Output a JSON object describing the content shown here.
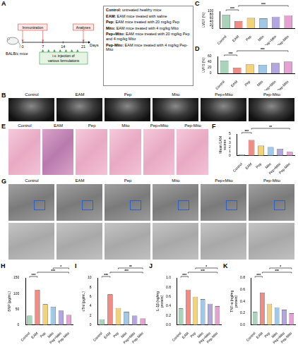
{
  "schematic": {
    "panel": "A",
    "subject": "BALB/c mice",
    "timeline": {
      "ticks": [
        0,
        7,
        14,
        21
      ],
      "unit": "Days",
      "events": [
        {
          "days": [
            0,
            7
          ],
          "label": "Immunization"
        },
        {
          "days": [
            21
          ],
          "label": "Analyses"
        }
      ],
      "treatment": {
        "label": "i.v. injection of various formulations",
        "days": [
          7,
          9,
          11,
          13,
          15,
          17,
          19
        ]
      }
    },
    "groups": [
      "Control: untreated healthy mice",
      "EAM: EAM mice treated with saline",
      "Pep: EAM mice treated with 20 mg/kg Pep",
      "Mito: EAM mice treated with 4 mg/kg Mito",
      "Pep+Mito: EAM mice treated with 20 mg/kg Pep and 4 mg/kg Mito",
      "Pep-Mito: EAM mice treated with 4 mg/kg Pep-Mito"
    ]
  },
  "image_panels": [
    {
      "panel": "B",
      "columns": [
        "Control",
        "EAM",
        "Pep",
        "Mito",
        "Pep+Mito",
        "Pep-Mito"
      ]
    },
    {
      "panel": "E",
      "columns": [
        "Control",
        "EAM",
        "Pep",
        "Mito",
        "Pep+Mito",
        "Pep-Mito"
      ]
    },
    {
      "panel": "G",
      "columns": [
        "Control",
        "EAM",
        "Pep",
        "Mito",
        "Pep+Mito",
        "Pep-Mito"
      ]
    }
  ],
  "chart_data": [
    {
      "panel": "C",
      "type": "bar",
      "y_label": "LVEF (%)",
      "categories": [
        "Control",
        "EAM",
        "Pep",
        "Mito",
        "Pep+Mito",
        "Pep-Mito"
      ],
      "values": [
        80,
        42,
        60,
        58,
        68,
        76
      ],
      "colors": [
        "#a8d5ba",
        "#f08c84",
        "#f4d27a",
        "#9ec9e8",
        "#b3a6e0",
        "#e6a1d3"
      ],
      "ylim": [
        0,
        100
      ],
      "yticks": [
        0,
        20,
        40,
        60,
        80,
        100
      ],
      "grid": false,
      "significance": [
        {
          "pair": [
            0,
            1
          ],
          "label": "***"
        },
        {
          "pair": [
            1,
            5
          ],
          "label": "***"
        }
      ]
    },
    {
      "panel": "D",
      "type": "bar",
      "y_label": "LVFS (%)",
      "categories": [
        "Control",
        "EAM",
        "Pep",
        "Mito",
        "Pep+Mito",
        "Pep-Mito"
      ],
      "values": [
        45,
        20,
        32,
        30,
        37,
        42
      ],
      "colors": [
        "#a8d5ba",
        "#f08c84",
        "#f4d27a",
        "#9ec9e8",
        "#b3a6e0",
        "#e6a1d3"
      ],
      "ylim": [
        0,
        60
      ],
      "yticks": [
        0,
        20,
        40,
        60
      ],
      "grid": false,
      "significance": [
        {
          "pair": [
            0,
            1
          ],
          "label": "***"
        },
        {
          "pair": [
            1,
            5
          ],
          "label": "***"
        }
      ]
    },
    {
      "panel": "F",
      "type": "bar",
      "y_label": "Mean EAM scores",
      "categories": [
        "Control",
        "EAM",
        "Pep",
        "Mito",
        "Pep+Mito",
        "Pep-Mito"
      ],
      "values": [
        0.3,
        3.6,
        2.3,
        2.0,
        1.6,
        0.9
      ],
      "colors": [
        "#a8d5ba",
        "#f08c84",
        "#f4d27a",
        "#9ec9e8",
        "#b3a6e0",
        "#e6a1d3"
      ],
      "ylim": [
        0,
        5
      ],
      "yticks": [
        0,
        1,
        2,
        3,
        4,
        5
      ],
      "grid": false,
      "significance": [
        {
          "pair": [
            0,
            1
          ],
          "label": "***"
        },
        {
          "pair": [
            1,
            5
          ],
          "label": "**"
        }
      ]
    },
    {
      "panel": "H",
      "type": "bar",
      "y_label": "BNP (pg/mL)",
      "categories": [
        "Control",
        "EAM",
        "Pep",
        "Mito",
        "Pep+Mito",
        "Pep-Mito"
      ],
      "values": [
        30,
        112,
        66,
        58,
        46,
        32
      ],
      "colors": [
        "#a8d5ba",
        "#f08c84",
        "#f4d27a",
        "#9ec9e8",
        "#b3a6e0",
        "#e6a1d3"
      ],
      "ylim": [
        0,
        150
      ],
      "yticks": [
        0,
        50,
        100,
        150
      ],
      "grid": false,
      "significance": [
        {
          "pair": [
            0,
            1
          ],
          "label": "***"
        },
        {
          "pair": [
            1,
            5
          ],
          "label": "***"
        },
        {
          "pair": [
            3,
            5
          ],
          "label": "*"
        }
      ]
    },
    {
      "panel": "I",
      "type": "bar",
      "y_label": "cTnI (pg/mL)",
      "categories": [
        "Control",
        "EAM",
        "Pep",
        "Mito",
        "Pep+Mito",
        "Pep-Mito"
      ],
      "values": [
        1.2,
        6.5,
        3.6,
        2.8,
        2.0,
        1.4
      ],
      "colors": [
        "#a8d5ba",
        "#f08c84",
        "#f4d27a",
        "#9ec9e8",
        "#b3a6e0",
        "#e6a1d3"
      ],
      "ylim": [
        0,
        10
      ],
      "yticks": [
        0,
        2,
        4,
        6,
        8,
        10
      ],
      "grid": false,
      "significance": [
        {
          "pair": [
            0,
            1
          ],
          "label": "***"
        },
        {
          "pair": [
            1,
            5
          ],
          "label": "***"
        },
        {
          "pair": [
            2,
            5
          ],
          "label": "**"
        }
      ]
    },
    {
      "panel": "J",
      "type": "bar",
      "y_label": "IL-1β (ng/mg protein)",
      "categories": [
        "Control",
        "EAM",
        "Pep",
        "Mito",
        "Pep+Mito",
        "Pep-Mito"
      ],
      "values": [
        0.35,
        0.75,
        0.6,
        0.55,
        0.45,
        0.4
      ],
      "colors": [
        "#a8d5ba",
        "#f08c84",
        "#f4d27a",
        "#9ec9e8",
        "#b3a6e0",
        "#e6a1d3"
      ],
      "ylim": [
        0,
        1
      ],
      "yticks": [
        {
          "value": 0,
          "label": "0.0"
        },
        {
          "value": 0.2,
          "label": "0.2"
        },
        {
          "value": 0.4,
          "label": "0.4"
        },
        {
          "value": 0.6,
          "label": "0.6"
        },
        {
          "value": 0.8,
          "label": "0.8"
        },
        {
          "value": 1,
          "label": "1.0"
        }
      ],
      "grid": false,
      "significance": [
        {
          "pair": [
            0,
            1
          ],
          "label": "***"
        },
        {
          "pair": [
            1,
            5
          ],
          "label": "***"
        },
        {
          "pair": [
            2,
            5
          ],
          "label": "*"
        }
      ]
    },
    {
      "panel": "K",
      "type": "bar",
      "y_label": "TNF-α (ng/mg protein)",
      "categories": [
        "Control",
        "EAM",
        "Pep",
        "Mito",
        "Pep+Mito",
        "Pep-Mito"
      ],
      "values": [
        0.22,
        0.55,
        0.36,
        0.3,
        0.26,
        0.2
      ],
      "colors": [
        "#a8d5ba",
        "#f08c84",
        "#f4d27a",
        "#9ec9e8",
        "#b3a6e0",
        "#e6a1d3"
      ],
      "ylim": [
        0,
        0.8
      ],
      "yticks": [
        {
          "value": 0,
          "label": "0.0"
        },
        {
          "value": 0.2,
          "label": "0.2"
        },
        {
          "value": 0.4,
          "label": "0.4"
        },
        {
          "value": 0.6,
          "label": "0.6"
        },
        {
          "value": 0.8,
          "label": "0.8"
        }
      ],
      "grid": false,
      "significance": [
        {
          "pair": [
            0,
            1
          ],
          "label": "***"
        },
        {
          "pair": [
            1,
            5
          ],
          "label": "***"
        },
        {
          "pair": [
            2,
            5
          ],
          "label": "*"
        }
      ]
    }
  ]
}
